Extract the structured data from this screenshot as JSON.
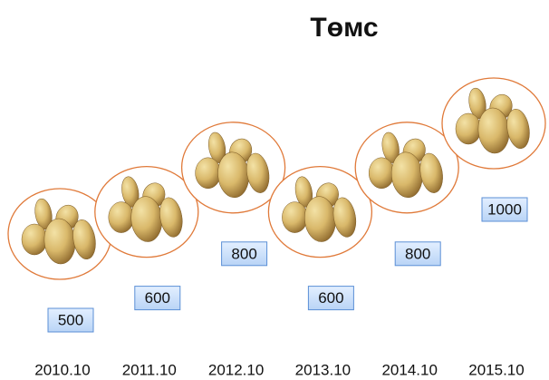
{
  "chart_data": {
    "type": "pictograph",
    "title": "Төмс",
    "categories": [
      "2010.10",
      "2011.10",
      "2012.10",
      "2013.10",
      "2014.10",
      "2015.10"
    ],
    "values": [
      500,
      600,
      800,
      600,
      800,
      1000
    ],
    "color": "#e07a3a"
  }
}
